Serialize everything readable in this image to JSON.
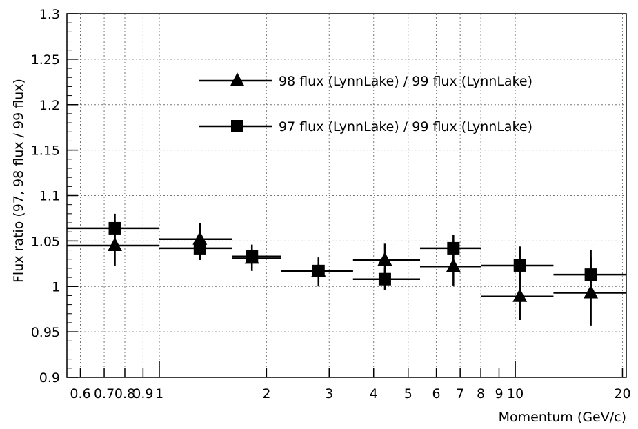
{
  "chart_data": {
    "type": "scatter",
    "title": "",
    "xlabel": "Momentum (GeV/c)",
    "ylabel": "Flux ratio (97, 98 flux / 99 flux)",
    "xscale": "log",
    "xlim": [
      0.55,
      20.5
    ],
    "ylim": [
      0.9,
      1.3
    ],
    "grid": true,
    "legend_position": "top",
    "x_tick_labels": [
      "0.6",
      "0.7",
      "0.8",
      "0.9",
      "1",
      "2",
      "3",
      "4",
      "5",
      "6",
      "7",
      "8",
      "9",
      "10",
      "20"
    ],
    "y_tick_labels": [
      "0.9",
      "0.95",
      "1",
      "1.05",
      "1.1",
      "1.15",
      "1.2",
      "1.25",
      "1.3"
    ],
    "series": [
      {
        "name": "98 flux (LynnLake) / 99 flux (LynnLake)",
        "marker": "triangle",
        "color": "#000000",
        "points": [
          {
            "x": 0.75,
            "y": 1.045,
            "xlo": 0.55,
            "xhi": 1.0,
            "ylo": 1.023,
            "yhi": 1.067
          },
          {
            "x": 1.3,
            "y": 1.052,
            "xlo": 1.0,
            "xhi": 1.6,
            "ylo": 1.034,
            "yhi": 1.07
          },
          {
            "x": 1.82,
            "y": 1.031,
            "xlo": 1.6,
            "xhi": 2.2,
            "ylo": 1.017,
            "yhi": 1.045
          },
          {
            "x": 2.8,
            "y": 1.017,
            "xlo": 2.2,
            "xhi": 3.5,
            "ylo": 1.003,
            "yhi": 1.031
          },
          {
            "x": 4.3,
            "y": 1.029,
            "xlo": 3.5,
            "xhi": 5.4,
            "ylo": 1.011,
            "yhi": 1.047
          },
          {
            "x": 6.7,
            "y": 1.022,
            "xlo": 5.4,
            "xhi": 8.0,
            "ylo": 1.001,
            "yhi": 1.043
          },
          {
            "x": 10.3,
            "y": 0.989,
            "xlo": 8.0,
            "xhi": 12.8,
            "ylo": 0.963,
            "yhi": 1.014
          },
          {
            "x": 16.3,
            "y": 0.993,
            "xlo": 12.8,
            "xhi": 20.5,
            "ylo": 0.957,
            "yhi": 1.032
          }
        ]
      },
      {
        "name": "97 flux (LynnLake) / 99 flux (LynnLake)",
        "marker": "square",
        "color": "#000000",
        "points": [
          {
            "x": 0.75,
            "y": 1.064,
            "xlo": 0.55,
            "xhi": 1.0,
            "ylo": 1.048,
            "yhi": 1.08
          },
          {
            "x": 1.3,
            "y": 1.042,
            "xlo": 1.0,
            "xhi": 1.6,
            "ylo": 1.029,
            "yhi": 1.055
          },
          {
            "x": 1.82,
            "y": 1.033,
            "xlo": 1.6,
            "xhi": 2.2,
            "ylo": 1.02,
            "yhi": 1.046
          },
          {
            "x": 2.8,
            "y": 1.017,
            "xlo": 2.2,
            "xhi": 3.5,
            "ylo": 1.0,
            "yhi": 1.032
          },
          {
            "x": 4.3,
            "y": 1.008,
            "xlo": 3.5,
            "xhi": 5.4,
            "ylo": 0.996,
            "yhi": 1.02
          },
          {
            "x": 6.7,
            "y": 1.042,
            "xlo": 5.4,
            "xhi": 8.0,
            "ylo": 1.028,
            "yhi": 1.057
          },
          {
            "x": 10.3,
            "y": 1.023,
            "xlo": 8.0,
            "xhi": 12.8,
            "ylo": 1.003,
            "yhi": 1.044
          },
          {
            "x": 16.3,
            "y": 1.013,
            "xlo": 12.8,
            "xhi": 20.5,
            "ylo": 0.99,
            "yhi": 1.04
          }
        ]
      }
    ]
  }
}
